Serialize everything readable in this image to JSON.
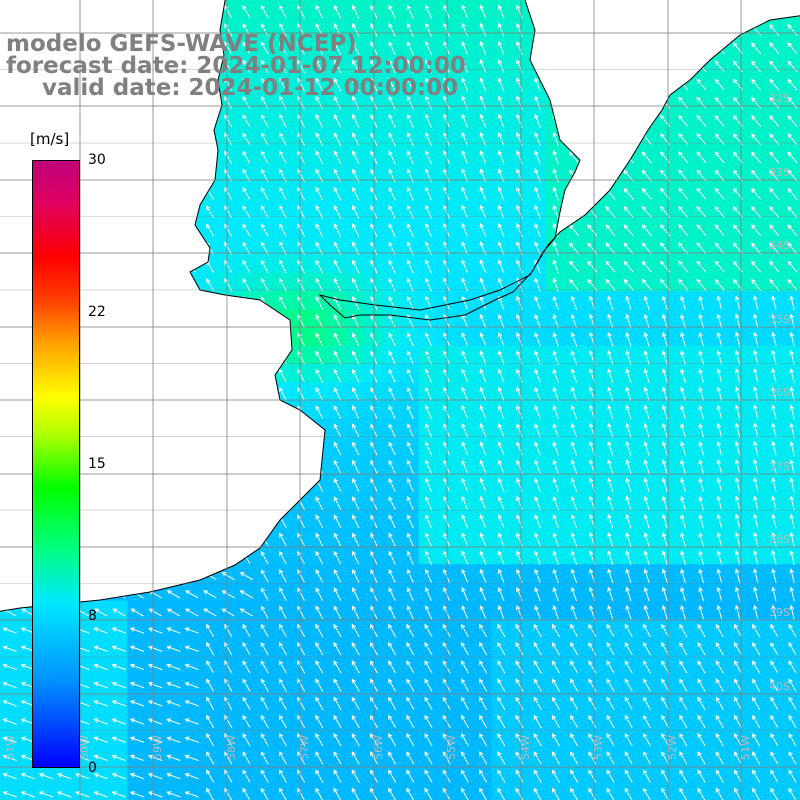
{
  "title": {
    "line1": "modelo GEFS-WAVE (NCEP)",
    "line2": "forecast date: 2024-01-07 12:00:00",
    "line3": "valid date: 2024-01-12 00:00:00"
  },
  "colorbar": {
    "unit": "[m/s]",
    "ticks": [
      "30",
      "22",
      "15",
      "8",
      "0"
    ],
    "min": 0,
    "max": 30,
    "colors": [
      "#0000ff",
      "#0090ff",
      "#00e8ff",
      "#00ff80",
      "#00ff00",
      "#ffff00",
      "#ff4000",
      "#ff0000",
      "#c0007a"
    ]
  },
  "map": {
    "variable": "wind speed and direction",
    "lat_labels": [
      "32S",
      "33S",
      "34S",
      "35S",
      "36S",
      "37S",
      "38S",
      "39S",
      "40S"
    ],
    "lon_labels": [
      "61W",
      "60W",
      "59W",
      "58W",
      "57W",
      "56W",
      "55W",
      "54W",
      "53W",
      "52W",
      "51W"
    ],
    "colors": {
      "land": "#ffffff",
      "coastline": "#000000",
      "grid": "#808080",
      "vectors": "#ffffff"
    }
  }
}
